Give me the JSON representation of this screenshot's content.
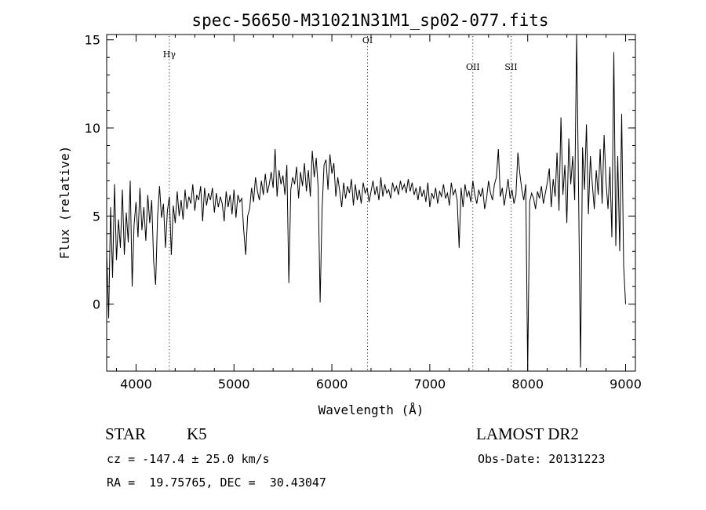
{
  "chart_data": {
    "type": "line",
    "title": "spec-56650-M31021N31M1_sp02-077.fits",
    "xlabel": "Wavelength (Å)",
    "ylabel": "Flux (relative)",
    "xlim": [
      3700,
      9100
    ],
    "ylim": [
      -3.8,
      15.3
    ],
    "x_ticks": [
      4000,
      5000,
      6000,
      7000,
      8000,
      9000
    ],
    "y_ticks": [
      0,
      5,
      10,
      15
    ],
    "grid": false,
    "spectral_lines": [
      {
        "label": "Hγ",
        "x": 4340,
        "label_y": 14.0
      },
      {
        "label": "OI",
        "x": 6364,
        "label_y": 14.8
      },
      {
        "label": "OII",
        "x": 7440,
        "label_y": 13.3
      },
      {
        "label": "SII",
        "x": 7830,
        "label_y": 13.3
      }
    ],
    "series": [
      {
        "color": "#000000",
        "x": [
          3700,
          3720,
          3740,
          3760,
          3780,
          3800,
          3820,
          3840,
          3860,
          3880,
          3900,
          3920,
          3940,
          3960,
          3980,
          4000,
          4020,
          4040,
          4060,
          4080,
          4100,
          4120,
          4140,
          4160,
          4180,
          4200,
          4220,
          4240,
          4260,
          4280,
          4300,
          4320,
          4340,
          4360,
          4380,
          4400,
          4420,
          4440,
          4460,
          4480,
          4500,
          4520,
          4540,
          4560,
          4580,
          4600,
          4620,
          4640,
          4660,
          4680,
          4700,
          4720,
          4740,
          4760,
          4780,
          4800,
          4820,
          4840,
          4860,
          4880,
          4900,
          4920,
          4940,
          4960,
          4980,
          5000,
          5020,
          5040,
          5060,
          5080,
          5100,
          5120,
          5140,
          5160,
          5180,
          5200,
          5220,
          5240,
          5260,
          5280,
          5300,
          5320,
          5340,
          5360,
          5380,
          5400,
          5420,
          5440,
          5460,
          5480,
          5500,
          5520,
          5540,
          5560,
          5580,
          5600,
          5620,
          5640,
          5660,
          5680,
          5700,
          5720,
          5740,
          5760,
          5780,
          5800,
          5820,
          5840,
          5860,
          5880,
          5900,
          5920,
          5940,
          5960,
          5980,
          6000,
          6020,
          6040,
          6060,
          6080,
          6100,
          6120,
          6140,
          6160,
          6180,
          6200,
          6220,
          6240,
          6260,
          6280,
          6300,
          6320,
          6340,
          6360,
          6380,
          6400,
          6420,
          6440,
          6460,
          6480,
          6500,
          6520,
          6540,
          6560,
          6580,
          6600,
          6620,
          6640,
          6660,
          6680,
          6700,
          6720,
          6740,
          6760,
          6780,
          6800,
          6820,
          6840,
          6860,
          6880,
          6900,
          6920,
          6940,
          6960,
          6980,
          7000,
          7020,
          7040,
          7060,
          7080,
          7100,
          7120,
          7140,
          7160,
          7180,
          7200,
          7220,
          7240,
          7260,
          7280,
          7300,
          7320,
          7340,
          7360,
          7380,
          7400,
          7420,
          7440,
          7460,
          7480,
          7500,
          7520,
          7540,
          7560,
          7580,
          7600,
          7620,
          7640,
          7660,
          7680,
          7700,
          7720,
          7740,
          7760,
          7780,
          7800,
          7820,
          7840,
          7860,
          7880,
          7900,
          7920,
          7940,
          7960,
          7980,
          8000,
          8020,
          8040,
          8060,
          8080,
          8100,
          8120,
          8140,
          8160,
          8180,
          8200,
          8220,
          8240,
          8260,
          8280,
          8300,
          8320,
          8340,
          8360,
          8380,
          8400,
          8420,
          8440,
          8460,
          8480,
          8500,
          8520,
          8540,
          8560,
          8580,
          8600,
          8620,
          8640,
          8660,
          8680,
          8700,
          8720,
          8740,
          8760,
          8780,
          8800,
          8820,
          8840,
          8860,
          8880,
          8900,
          8920,
          8940,
          8960,
          8980,
          9000
        ],
        "y": [
          3.0,
          -0.8,
          5.5,
          1.5,
          6.8,
          2.5,
          4.8,
          3.2,
          6.5,
          2.8,
          5.2,
          3.5,
          7.0,
          1.0,
          4.5,
          5.8,
          3.8,
          6.6,
          4.2,
          5.5,
          3.6,
          6.2,
          4.6,
          5.9,
          2.4,
          1.1,
          5.0,
          6.7,
          4.9,
          5.7,
          3.2,
          5.3,
          6.1,
          2.8,
          5.6,
          4.6,
          6.4,
          5.0,
          5.9,
          4.8,
          6.5,
          5.4,
          6.1,
          5.7,
          6.8,
          5.3,
          6.2,
          5.9,
          6.7,
          4.7,
          6.6,
          5.6,
          6.3,
          5.9,
          6.6,
          5.2,
          6.3,
          5.5,
          6.1,
          5.7,
          4.7,
          6.4,
          5.5,
          6.2,
          5.1,
          6.5,
          4.9,
          6.2,
          5.8,
          6.0,
          4.2,
          2.8,
          5.0,
          5.4,
          6.6,
          5.8,
          7.2,
          6.4,
          5.9,
          7.0,
          6.2,
          7.4,
          6.3,
          6.8,
          7.5,
          6.6,
          8.8,
          6.1,
          7.6,
          6.8,
          7.3,
          6.2,
          7.9,
          1.2,
          6.5,
          7.2,
          6.8,
          7.8,
          6.0,
          7.5,
          6.7,
          8.0,
          6.4,
          7.6,
          6.1,
          8.7,
          7.2,
          8.3,
          6.6,
          0.1,
          5.4,
          7.9,
          8.2,
          6.5,
          8.5,
          7.4,
          8.0,
          6.1,
          7.2,
          6.4,
          5.5,
          6.9,
          6.0,
          6.7,
          6.3,
          7.1,
          5.6,
          6.8,
          5.9,
          6.5,
          5.7,
          6.9,
          6.3,
          6.6,
          5.8,
          6.4,
          7.0,
          6.2,
          6.7,
          5.9,
          7.2,
          6.1,
          6.8,
          6.3,
          6.5,
          6.0,
          6.9,
          6.4,
          6.7,
          6.2,
          7.0,
          6.5,
          6.8,
          6.3,
          7.1,
          6.4,
          6.9,
          6.2,
          6.6,
          5.9,
          6.7,
          6.1,
          6.5,
          5.8,
          6.9,
          5.5,
          6.3,
          6.0,
          6.6,
          5.7,
          6.4,
          6.1,
          6.8,
          6.0,
          6.3,
          5.6,
          6.9,
          6.2,
          6.5,
          5.9,
          3.2,
          6.6,
          5.5,
          6.8,
          6.1,
          6.4,
          5.8,
          7.0,
          6.2,
          5.7,
          6.5,
          6.1,
          6.6,
          5.4,
          6.0,
          7.0,
          6.3,
          5.9,
          6.8,
          7.2,
          8.8,
          6.1,
          6.6,
          5.6,
          6.3,
          7.1,
          6.0,
          6.5,
          5.7,
          6.2,
          8.6,
          7.4,
          6.5,
          5.9,
          6.8,
          -3.8,
          5.8,
          6.3,
          6.0,
          5.4,
          6.4,
          6.0,
          6.7,
          5.7,
          6.3,
          6.9,
          7.7,
          5.5,
          7.1,
          6.1,
          8.6,
          5.3,
          10.6,
          6.2,
          7.9,
          4.6,
          9.4,
          6.8,
          8.4,
          5.9,
          15.3,
          6.2,
          -3.6,
          8.9,
          6.5,
          10.2,
          5.1,
          8.4,
          6.8,
          5.4,
          7.6,
          6.2,
          8.8,
          5.7,
          9.6,
          6.9,
          5.4,
          7.8,
          3.8,
          14.3,
          3.3,
          8.4,
          3.0,
          10.8,
          2.2,
          0.0
        ]
      }
    ]
  },
  "info": {
    "object_type": "STAR",
    "subclass": "K5",
    "survey": "LAMOST DR2",
    "redshift_line": "cz = -147.4 ± 25.0 km/s",
    "obs_date_line": "Obs-Date: 20131223",
    "coords_line": "RA =  19.75765, DEC =  30.43047"
  }
}
